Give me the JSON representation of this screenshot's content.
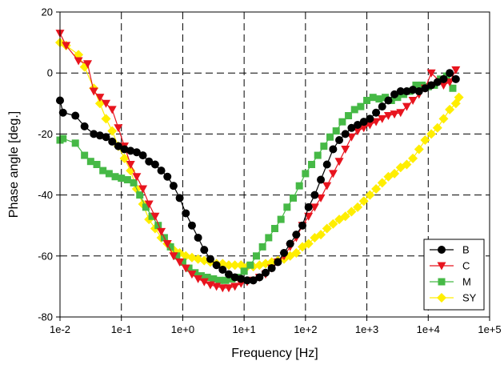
{
  "chart_data": {
    "type": "scatter",
    "xscale": "log",
    "xlabel": "Frequency [Hz]",
    "ylabel": "Phase angle [deg.]",
    "xlim": [
      0.01,
      100000
    ],
    "ylim": [
      -80,
      20
    ],
    "x_tick_labels": [
      "1e-2",
      "1e-1",
      "1e+0",
      "1e+1",
      "1e+2",
      "1e+3",
      "1e+4",
      "1e+5"
    ],
    "y_tick_labels": [
      "-80",
      "-60",
      "-40",
      "-20",
      "0",
      "20"
    ],
    "x_ticks": [
      0.01,
      0.1,
      1,
      10,
      100,
      1000,
      10000,
      100000
    ],
    "y_ticks": [
      -80,
      -60,
      -40,
      -20,
      0,
      20
    ],
    "grid": "dashed, major ticks",
    "legend_position": "bottom-right",
    "series": [
      {
        "name": "B",
        "color": "#000000",
        "marker": "circle",
        "points": [
          [
            0.01,
            -9
          ],
          [
            0.0112,
            -13
          ],
          [
            0.0178,
            -14
          ],
          [
            0.0251,
            -17.5
          ],
          [
            0.0355,
            -20
          ],
          [
            0.0447,
            -20.5
          ],
          [
            0.0562,
            -21
          ],
          [
            0.0708,
            -22.5
          ],
          [
            0.0891,
            -24
          ],
          [
            0.1122,
            -25
          ],
          [
            0.1413,
            -25.5
          ],
          [
            0.1778,
            -26
          ],
          [
            0.2239,
            -27
          ],
          [
            0.2818,
            -29
          ],
          [
            0.3548,
            -30
          ],
          [
            0.4467,
            -32
          ],
          [
            0.5623,
            -34
          ],
          [
            0.7079,
            -37
          ],
          [
            0.8913,
            -41
          ],
          [
            1.122,
            -46
          ],
          [
            1.413,
            -50
          ],
          [
            1.778,
            -54
          ],
          [
            2.239,
            -58
          ],
          [
            2.818,
            -61
          ],
          [
            3.548,
            -63
          ],
          [
            4.467,
            -64.5
          ],
          [
            5.623,
            -66
          ],
          [
            7.079,
            -67
          ],
          [
            8.913,
            -67.5
          ],
          [
            11.22,
            -68
          ],
          [
            14.13,
            -68
          ],
          [
            17.78,
            -67
          ],
          [
            22.39,
            -65.5
          ],
          [
            28.18,
            -64
          ],
          [
            35.48,
            -62
          ],
          [
            44.67,
            -59
          ],
          [
            56.23,
            -56
          ],
          [
            70.79,
            -53
          ],
          [
            89.13,
            -50
          ],
          [
            112.2,
            -44
          ],
          [
            141.3,
            -40
          ],
          [
            177.8,
            -35
          ],
          [
            223.9,
            -30
          ],
          [
            281.8,
            -25
          ],
          [
            354.8,
            -22
          ],
          [
            446.7,
            -20
          ],
          [
            562.3,
            -18
          ],
          [
            707.9,
            -17
          ],
          [
            891.3,
            -16
          ],
          [
            1122,
            -15
          ],
          [
            1413,
            -13
          ],
          [
            1778,
            -11
          ],
          [
            2239,
            -9
          ],
          [
            2818,
            -7
          ],
          [
            3548,
            -6
          ],
          [
            4467,
            -6
          ],
          [
            5623,
            -5.5
          ],
          [
            7079,
            -6
          ],
          [
            8913,
            -5
          ],
          [
            11220,
            -4
          ],
          [
            14130,
            -3
          ],
          [
            17780,
            -2
          ],
          [
            22390,
            0
          ],
          [
            28180,
            -2
          ]
        ]
      },
      {
        "name": "C",
        "color": "#e8141e",
        "marker": "triangle-down",
        "points": [
          [
            0.01,
            13
          ],
          [
            0.0126,
            9
          ],
          [
            0.02,
            4
          ],
          [
            0.0282,
            3
          ],
          [
            0.0355,
            -6
          ],
          [
            0.0447,
            -8
          ],
          [
            0.0562,
            -10
          ],
          [
            0.0708,
            -12
          ],
          [
            0.0891,
            -18
          ],
          [
            0.1122,
            -24
          ],
          [
            0.1413,
            -30
          ],
          [
            0.1778,
            -34
          ],
          [
            0.2239,
            -38
          ],
          [
            0.2818,
            -43
          ],
          [
            0.3548,
            -47
          ],
          [
            0.4467,
            -52
          ],
          [
            0.5623,
            -56
          ],
          [
            0.7079,
            -60
          ],
          [
            0.8913,
            -62
          ],
          [
            1.122,
            -64
          ],
          [
            1.413,
            -66
          ],
          [
            1.778,
            -67.5
          ],
          [
            2.239,
            -68.5
          ],
          [
            2.818,
            -69.5
          ],
          [
            3.548,
            -70
          ],
          [
            4.467,
            -70.5
          ],
          [
            5.623,
            -70.5
          ],
          [
            7.079,
            -70
          ],
          [
            8.913,
            -69
          ],
          [
            11.22,
            -68.5
          ],
          [
            14.13,
            -68
          ],
          [
            17.78,
            -67
          ],
          [
            22.39,
            -66
          ],
          [
            28.18,
            -64
          ],
          [
            35.48,
            -62
          ],
          [
            44.67,
            -60
          ],
          [
            56.23,
            -57
          ],
          [
            70.79,
            -54
          ],
          [
            89.13,
            -50
          ],
          [
            112.2,
            -47
          ],
          [
            141.3,
            -44
          ],
          [
            177.8,
            -41
          ],
          [
            223.9,
            -37
          ],
          [
            281.8,
            -33
          ],
          [
            354.8,
            -29
          ],
          [
            446.7,
            -25
          ],
          [
            562.3,
            -21
          ],
          [
            707.9,
            -19
          ],
          [
            891.3,
            -18
          ],
          [
            1122,
            -17
          ],
          [
            1413,
            -16
          ],
          [
            1778,
            -15
          ],
          [
            2239,
            -14
          ],
          [
            2818,
            -13.5
          ],
          [
            3548,
            -13
          ],
          [
            4467,
            -11
          ],
          [
            5623,
            -9
          ],
          [
            7079,
            -7
          ],
          [
            8913,
            -5
          ],
          [
            11220,
            0
          ],
          [
            17780,
            -4
          ],
          [
            22390,
            -3
          ],
          [
            28180,
            1
          ]
        ]
      },
      {
        "name": "M",
        "color": "#46b946",
        "marker": "square",
        "points": [
          [
            0.01,
            -22
          ],
          [
            0.0112,
            -21.5
          ],
          [
            0.0178,
            -23
          ],
          [
            0.0251,
            -27
          ],
          [
            0.0316,
            -29
          ],
          [
            0.0398,
            -30
          ],
          [
            0.0501,
            -32
          ],
          [
            0.0631,
            -33
          ],
          [
            0.0794,
            -34
          ],
          [
            0.1,
            -34.5
          ],
          [
            0.1259,
            -35
          ],
          [
            0.1585,
            -36
          ],
          [
            0.1995,
            -40
          ],
          [
            0.2512,
            -44
          ],
          [
            0.3162,
            -47
          ],
          [
            0.3981,
            -50
          ],
          [
            0.5012,
            -54
          ],
          [
            0.631,
            -57
          ],
          [
            0.7943,
            -60
          ],
          [
            1.0,
            -62
          ],
          [
            1.259,
            -64
          ],
          [
            1.585,
            -65.5
          ],
          [
            1.995,
            -66.5
          ],
          [
            2.512,
            -67
          ],
          [
            3.162,
            -67.5
          ],
          [
            3.981,
            -68
          ],
          [
            5.012,
            -68
          ],
          [
            6.31,
            -67.5
          ],
          [
            7.943,
            -67
          ],
          [
            10.0,
            -65
          ],
          [
            12.59,
            -63
          ],
          [
            15.85,
            -60
          ],
          [
            19.95,
            -57
          ],
          [
            25.12,
            -54
          ],
          [
            31.62,
            -51
          ],
          [
            39.81,
            -48
          ],
          [
            50.12,
            -44
          ],
          [
            63.1,
            -41
          ],
          [
            79.43,
            -37
          ],
          [
            100.0,
            -33
          ],
          [
            125.9,
            -30
          ],
          [
            158.5,
            -27
          ],
          [
            199.5,
            -24
          ],
          [
            251.2,
            -21
          ],
          [
            316.2,
            -19
          ],
          [
            398.1,
            -16
          ],
          [
            501.2,
            -14
          ],
          [
            631.0,
            -12
          ],
          [
            794.3,
            -11
          ],
          [
            1000,
            -9
          ],
          [
            1259,
            -8
          ],
          [
            1585,
            -8.5
          ],
          [
            1995,
            -8
          ],
          [
            2512,
            -9
          ],
          [
            3162,
            -8
          ],
          [
            3981,
            -7
          ],
          [
            5012,
            -6
          ],
          [
            6310,
            -4
          ],
          [
            7943,
            -4
          ],
          [
            10000,
            -4.5
          ],
          [
            12590,
            -4
          ],
          [
            15850,
            -2
          ],
          [
            19950,
            -1
          ],
          [
            25120,
            -5
          ]
        ]
      },
      {
        "name": "SY",
        "color": "#ffee00",
        "marker": "diamond",
        "points": [
          [
            0.01,
            10
          ],
          [
            0.0126,
            9
          ],
          [
            0.02,
            6
          ],
          [
            0.0251,
            2
          ],
          [
            0.0355,
            -5
          ],
          [
            0.0447,
            -10
          ],
          [
            0.0562,
            -15
          ],
          [
            0.0708,
            -19
          ],
          [
            0.0891,
            -24
          ],
          [
            0.1122,
            -28
          ],
          [
            0.1413,
            -32
          ],
          [
            0.1778,
            -38
          ],
          [
            0.2239,
            -43
          ],
          [
            0.2818,
            -48
          ],
          [
            0.3548,
            -51
          ],
          [
            0.4467,
            -54
          ],
          [
            0.5623,
            -56
          ],
          [
            0.7079,
            -58
          ],
          [
            0.8913,
            -59
          ],
          [
            1.122,
            -60
          ],
          [
            1.413,
            -60.5
          ],
          [
            1.778,
            -61
          ],
          [
            2.239,
            -61.5
          ],
          [
            2.818,
            -62
          ],
          [
            3.548,
            -62.5
          ],
          [
            4.467,
            -62.5
          ],
          [
            5.623,
            -63
          ],
          [
            7.079,
            -63
          ],
          [
            8.913,
            -63
          ],
          [
            11.22,
            -63.5
          ],
          [
            14.13,
            -63.5
          ],
          [
            17.78,
            -63
          ],
          [
            22.39,
            -62.5
          ],
          [
            28.18,
            -62
          ],
          [
            35.48,
            -61.5
          ],
          [
            44.67,
            -61
          ],
          [
            56.23,
            -60
          ],
          [
            70.79,
            -59
          ],
          [
            89.13,
            -57
          ],
          [
            112.2,
            -56
          ],
          [
            141.3,
            -54
          ],
          [
            177.8,
            -53
          ],
          [
            223.9,
            -51
          ],
          [
            281.8,
            -49.5
          ],
          [
            354.8,
            -48
          ],
          [
            446.7,
            -47
          ],
          [
            562.3,
            -45.5
          ],
          [
            707.9,
            -44
          ],
          [
            891.3,
            -42
          ],
          [
            1122,
            -40
          ],
          [
            1413,
            -38
          ],
          [
            1778,
            -36
          ],
          [
            2239,
            -34
          ],
          [
            2818,
            -33
          ],
          [
            3548,
            -31
          ],
          [
            4467,
            -30
          ],
          [
            5623,
            -28
          ],
          [
            7079,
            -25
          ],
          [
            8913,
            -22
          ],
          [
            11220,
            -20
          ],
          [
            14130,
            -18
          ],
          [
            17780,
            -15
          ],
          [
            22390,
            -12
          ],
          [
            28180,
            -10
          ],
          [
            31620,
            -8
          ]
        ]
      }
    ]
  }
}
